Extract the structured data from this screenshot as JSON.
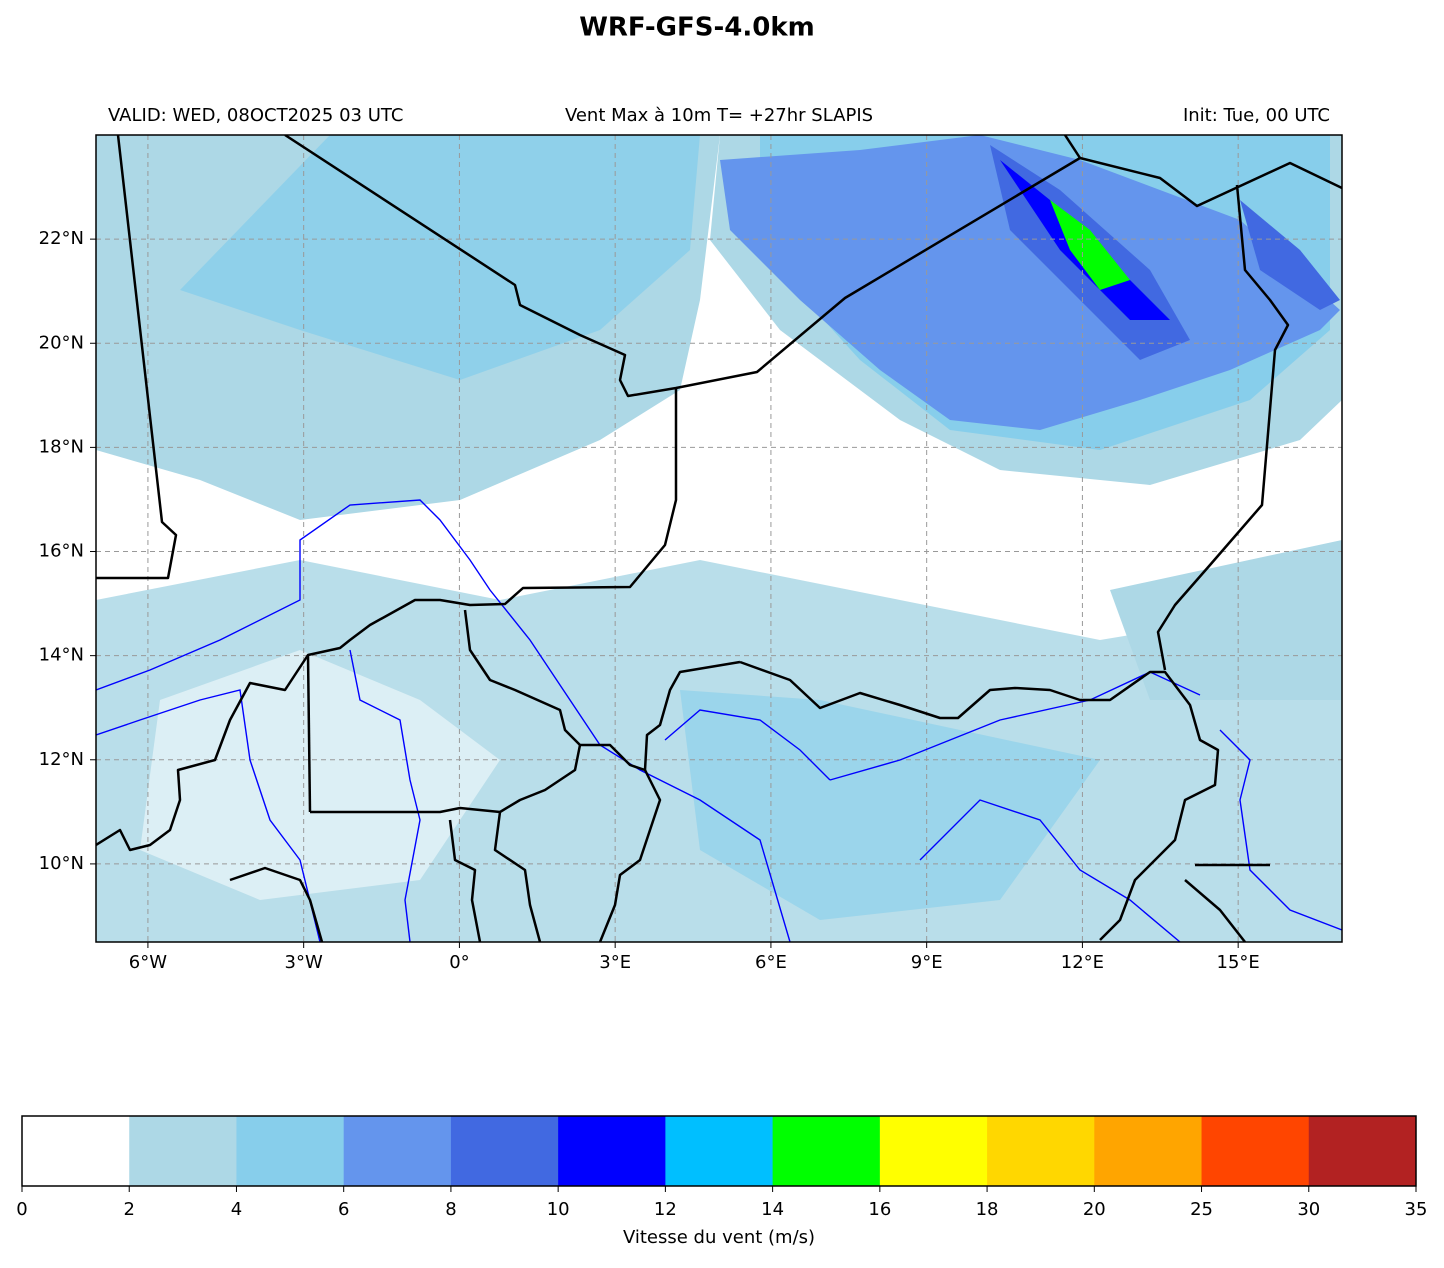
{
  "title": "WRF-GFS-4.0km",
  "valid": "VALID: WED, 08OCT2025 03 UTC",
  "subtitle": "Vent Max à 10m T= +27hr SLAPIS",
  "init": "Init: Tue, 00 UTC",
  "map": {
    "lonlim": [
      -7,
      17
    ],
    "latlim": [
      8.5,
      24
    ],
    "lon_ticks": [
      {
        "value": -6,
        "label": "6°W"
      },
      {
        "value": -3,
        "label": "3°W"
      },
      {
        "value": 0,
        "label": "0°"
      },
      {
        "value": 3,
        "label": "3°E"
      },
      {
        "value": 6,
        "label": "6°E"
      },
      {
        "value": 9,
        "label": "9°E"
      },
      {
        "value": 12,
        "label": "12°E"
      },
      {
        "value": 15,
        "label": "15°E"
      }
    ],
    "lat_ticks": [
      {
        "value": 10,
        "label": "10°N"
      },
      {
        "value": 12,
        "label": "12°N"
      },
      {
        "value": 14,
        "label": "14°N"
      },
      {
        "value": 16,
        "label": "16°N"
      },
      {
        "value": 18,
        "label": "18°N"
      },
      {
        "value": 20,
        "label": "20°N"
      },
      {
        "value": 22,
        "label": "22°N"
      }
    ],
    "grid": true
  },
  "colorbar": {
    "label": "Vitesse du vent (m/s)",
    "bounds": [
      0,
      2,
      4,
      6,
      8,
      10,
      12,
      14,
      16,
      18,
      20,
      25,
      30,
      35
    ],
    "colors": [
      "#ffffff",
      "#add8e6",
      "#87ceeb",
      "#6495ed",
      "#4169e1",
      "#0000ff",
      "#00bfff",
      "#00ff00",
      "#ffff00",
      "#ffd700",
      "#ffa500",
      "#ff4500",
      "#b22222"
    ]
  }
}
